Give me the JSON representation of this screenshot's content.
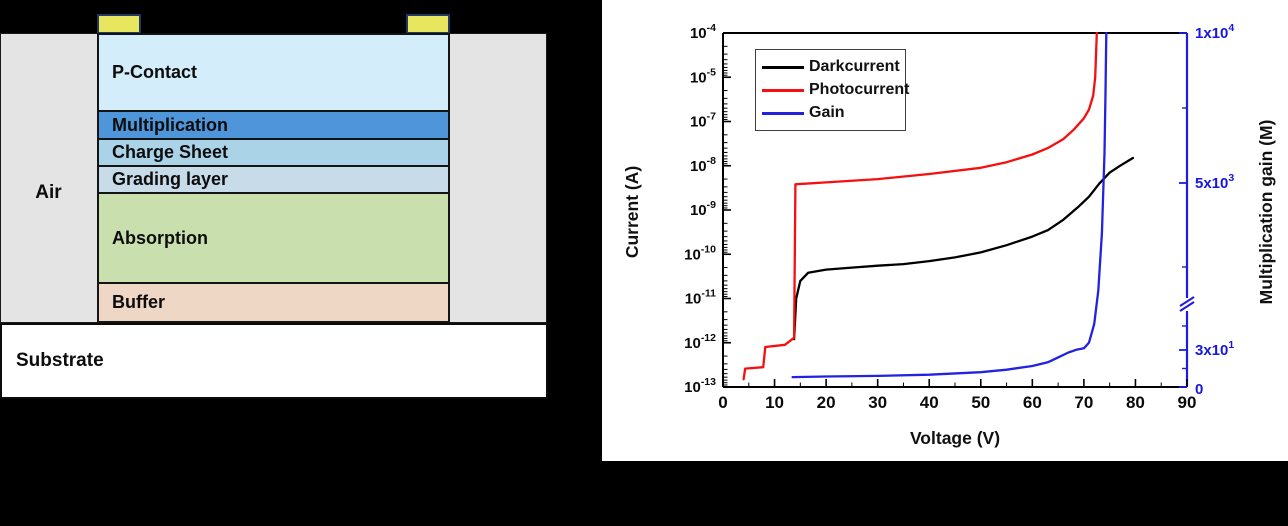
{
  "device_diagram": {
    "air_label": "Air",
    "substrate_label": "Substrate",
    "contact_color": "#e8e55e",
    "contact_border_color": "#1f3864",
    "air_color": "#e4e4e4",
    "substrate_color": "#ffffff",
    "layers": [
      {
        "name": "P-Contact",
        "color": "#d4edfa"
      },
      {
        "name": "Multiplication",
        "color": "#4e95d9"
      },
      {
        "name": "Charge Sheet",
        "color": "#abd3e8"
      },
      {
        "name": "Grading layer",
        "color": "#c7dbe9"
      },
      {
        "name": "Absorption",
        "color": "#cadfae"
      },
      {
        "name": "Buffer",
        "color": "#efd7c5"
      }
    ]
  },
  "chart": {
    "x_axis": {
      "title": "Voltage (V)",
      "ticks": [
        0,
        10,
        20,
        30,
        40,
        50,
        60,
        70,
        80,
        90
      ],
      "minor_step": 5
    },
    "y_left": {
      "title": "Current (A)",
      "scale": "log",
      "tick_labels": [
        "10^-4",
        "10^-5",
        "10^-7",
        "10^-8",
        "10^-9",
        "10^-10",
        "10^-11",
        "10^-12",
        "10^-13"
      ]
    },
    "y_right": {
      "title": "Multiplication gain (M)",
      "axis_color": "#1c1ce0",
      "has_break": true,
      "ticks": [
        {
          "label": "1x10^4",
          "value": 10000
        },
        {
          "label": "5x10^3",
          "value": 5000
        },
        {
          "label": "3x10^1",
          "value": 30
        },
        {
          "label": "0",
          "value": 0
        }
      ]
    }
  },
  "chart_data": {
    "type": "line",
    "title": "",
    "xlabel": "Voltage (V)",
    "ylabel_left": "Current (A)",
    "ylabel_right": "Multiplication gain (M)",
    "x_range": [
      0,
      90
    ],
    "y_left_scale": "log",
    "y_left_range_labels": [
      "1e-13",
      "1e-4"
    ],
    "y_right_range": [
      0,
      10000
    ],
    "y_right_axis_break": true,
    "legend_position": "top-left",
    "grid": false,
    "series": [
      {
        "name": "Darkcurrent",
        "color": "#000000",
        "axis": "left",
        "points": [
          [
            13.8,
            1.2e-12
          ],
          [
            14.2,
            1e-11
          ],
          [
            15,
            2.5e-11
          ],
          [
            16.5,
            3.8e-11
          ],
          [
            20,
            4.5e-11
          ],
          [
            25,
            5e-11
          ],
          [
            30,
            5.5e-11
          ],
          [
            35,
            6e-11
          ],
          [
            40,
            7e-11
          ],
          [
            45,
            8.5e-11
          ],
          [
            50,
            1.1e-10
          ],
          [
            55,
            1.6e-10
          ],
          [
            60,
            2.5e-10
          ],
          [
            63,
            3.5e-10
          ],
          [
            66,
            6e-10
          ],
          [
            69,
            1.2e-09
          ],
          [
            71,
            2e-09
          ],
          [
            73,
            4e-09
          ],
          [
            75,
            7e-09
          ],
          [
            77,
            1e-08
          ],
          [
            79.5,
            1.5e-08
          ]
        ]
      },
      {
        "name": "Photocurrent",
        "color": "#f50f0f",
        "axis": "left",
        "points": [
          [
            4,
            1.5e-13
          ],
          [
            4.3,
            2.6e-13
          ],
          [
            7.8,
            2.8e-13
          ],
          [
            8.2,
            8e-13
          ],
          [
            12,
            9e-13
          ],
          [
            13,
            1.1e-12
          ],
          [
            13.8,
            1.3e-12
          ],
          [
            14.05,
            3.8e-09
          ],
          [
            20,
            4.2e-09
          ],
          [
            30,
            5e-09
          ],
          [
            40,
            6.5e-09
          ],
          [
            50,
            9e-09
          ],
          [
            55,
            1.2e-08
          ],
          [
            60,
            1.8e-08
          ],
          [
            63,
            2.5e-08
          ],
          [
            66,
            4e-08
          ],
          [
            68,
            6.5e-08
          ],
          [
            70,
            1.4e-07
          ],
          [
            71,
            3.5e-07
          ],
          [
            71.8,
            1.5e-06
          ],
          [
            72.2,
            1e-05
          ],
          [
            72.5,
            0.0001
          ]
        ]
      },
      {
        "name": "Gain",
        "color": "#2222e0",
        "axis": "right",
        "points": [
          [
            13.5,
            8
          ],
          [
            20,
            8.5
          ],
          [
            30,
            9
          ],
          [
            40,
            10
          ],
          [
            50,
            12
          ],
          [
            55,
            14
          ],
          [
            60,
            17
          ],
          [
            63,
            20
          ],
          [
            65,
            24
          ],
          [
            67,
            28
          ],
          [
            68.5,
            35
          ],
          [
            70,
            80
          ],
          [
            71,
            250
          ],
          [
            72,
            800
          ],
          [
            72.8,
            1800
          ],
          [
            73.5,
            3500
          ],
          [
            74,
            6000
          ],
          [
            74.2,
            8000
          ],
          [
            74.35,
            10000
          ]
        ]
      }
    ]
  }
}
